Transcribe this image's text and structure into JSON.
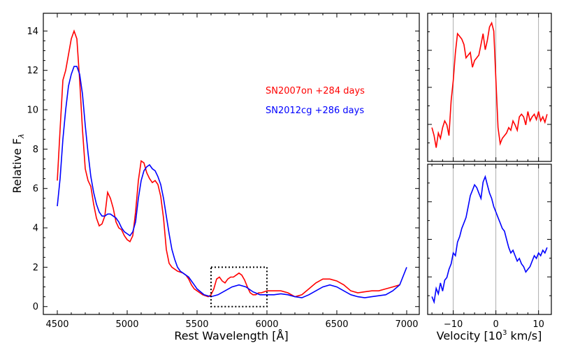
{
  "chart_data": [
    {
      "type": "line",
      "panel": "main",
      "xlabel": "Rest Wavelength [Å]",
      "ylabel": "Relative F",
      "ylabel_subscript": "λ",
      "xlim": [
        4400,
        7090
      ],
      "ylim": [
        -0.4,
        14.9
      ],
      "xticks": [
        4500,
        5000,
        5500,
        6000,
        6500,
        7000
      ],
      "yticks": [
        0,
        2,
        4,
        6,
        8,
        10,
        12,
        14
      ],
      "legend_position": "upper-middle-right",
      "annotation_box": {
        "x": [
          5600,
          6000
        ],
        "y": [
          0,
          2.0
        ],
        "style": "dotted"
      },
      "series": [
        {
          "name": "SN2007on +284 days",
          "color": "#ff0000",
          "x": [
            4500,
            4520,
            4540,
            4560,
            4580,
            4600,
            4620,
            4640,
            4660,
            4680,
            4700,
            4720,
            4740,
            4760,
            4780,
            4800,
            4820,
            4840,
            4860,
            4880,
            4900,
            4920,
            4940,
            4960,
            4980,
            5000,
            5020,
            5040,
            5060,
            5080,
            5100,
            5120,
            5140,
            5160,
            5180,
            5200,
            5220,
            5240,
            5260,
            5280,
            5300,
            5320,
            5340,
            5360,
            5380,
            5400,
            5420,
            5440,
            5460,
            5480,
            5500,
            5520,
            5540,
            5560,
            5580,
            5600,
            5620,
            5640,
            5660,
            5680,
            5700,
            5720,
            5740,
            5760,
            5780,
            5800,
            5820,
            5840,
            5860,
            5880,
            5900,
            5920,
            5940,
            5960,
            5980,
            6000,
            6050,
            6100,
            6150,
            6200,
            6250,
            6300,
            6350,
            6400,
            6450,
            6500,
            6550,
            6600,
            6650,
            6700,
            6750,
            6800,
            6850,
            6900,
            6950
          ],
          "values": [
            6.4,
            9.0,
            11.5,
            12.0,
            12.8,
            13.6,
            14.0,
            13.6,
            11.5,
            9.0,
            7.0,
            6.4,
            6.1,
            5.2,
            4.5,
            4.1,
            4.2,
            4.6,
            5.8,
            5.5,
            5.0,
            4.3,
            4.0,
            3.9,
            3.6,
            3.4,
            3.3,
            3.6,
            4.8,
            6.4,
            7.4,
            7.3,
            6.8,
            6.5,
            6.3,
            6.4,
            6.2,
            5.6,
            4.5,
            2.9,
            2.2,
            2.0,
            1.9,
            1.8,
            1.75,
            1.7,
            1.6,
            1.4,
            1.1,
            0.9,
            0.8,
            0.7,
            0.6,
            0.55,
            0.5,
            0.6,
            0.9,
            1.4,
            1.5,
            1.3,
            1.2,
            1.4,
            1.5,
            1.5,
            1.6,
            1.7,
            1.6,
            1.35,
            1.0,
            0.7,
            0.6,
            0.6,
            0.7,
            0.7,
            0.75,
            0.8,
            0.8,
            0.8,
            0.7,
            0.5,
            0.6,
            0.9,
            1.2,
            1.4,
            1.4,
            1.3,
            1.1,
            0.8,
            0.7,
            0.75,
            0.8,
            0.8,
            0.9,
            1.0,
            1.1
          ]
        },
        {
          "name": "SN2012cg +286 days",
          "color": "#0000ff",
          "x": [
            4500,
            4520,
            4540,
            4560,
            4580,
            4600,
            4620,
            4640,
            4660,
            4680,
            4700,
            4720,
            4740,
            4760,
            4780,
            4800,
            4820,
            4840,
            4860,
            4880,
            4900,
            4920,
            4940,
            4960,
            4980,
            5000,
            5020,
            5040,
            5060,
            5080,
            5100,
            5120,
            5140,
            5160,
            5180,
            5200,
            5220,
            5240,
            5260,
            5280,
            5300,
            5320,
            5340,
            5360,
            5380,
            5400,
            5420,
            5440,
            5460,
            5480,
            5500,
            5550,
            5600,
            5650,
            5700,
            5750,
            5800,
            5850,
            5900,
            5950,
            6000,
            6050,
            6100,
            6150,
            6200,
            6250,
            6300,
            6350,
            6400,
            6450,
            6500,
            6550,
            6600,
            6650,
            6700,
            6750,
            6800,
            6850,
            6900,
            6950,
            7000
          ],
          "values": [
            5.1,
            6.5,
            8.5,
            10.0,
            11.2,
            11.8,
            12.2,
            12.2,
            11.8,
            10.8,
            9.2,
            7.8,
            6.6,
            5.8,
            5.2,
            4.8,
            4.6,
            4.6,
            4.7,
            4.7,
            4.6,
            4.5,
            4.3,
            4.0,
            3.8,
            3.7,
            3.6,
            3.8,
            4.3,
            5.5,
            6.4,
            6.9,
            7.1,
            7.2,
            7.0,
            6.9,
            6.6,
            6.2,
            5.5,
            4.6,
            3.7,
            2.9,
            2.4,
            2.0,
            1.8,
            1.7,
            1.6,
            1.5,
            1.3,
            1.1,
            0.9,
            0.6,
            0.5,
            0.6,
            0.8,
            1.0,
            1.1,
            1.0,
            0.75,
            0.6,
            0.6,
            0.6,
            0.65,
            0.6,
            0.5,
            0.45,
            0.6,
            0.8,
            1.0,
            1.1,
            1.0,
            0.8,
            0.6,
            0.5,
            0.45,
            0.5,
            0.55,
            0.6,
            0.8,
            1.1,
            2.0
          ]
        }
      ]
    },
    {
      "type": "line",
      "panel": "inset-top",
      "xlim": [
        -16,
        13
      ],
      "ylim": [
        0,
        1
      ],
      "xticks": [
        -10,
        0,
        10
      ],
      "vlines": [
        -10,
        0,
        10
      ],
      "series": [
        {
          "name": "SN2007on velocity profile",
          "color": "#ff0000",
          "x": [
            -15,
            -14.5,
            -14,
            -13.5,
            -13,
            -12.5,
            -12,
            -11.5,
            -11,
            -10.5,
            -10,
            -9.5,
            -9,
            -8.5,
            -8,
            -7.5,
            -7,
            -6.5,
            -6,
            -5.5,
            -5,
            -4.5,
            -4,
            -3.5,
            -3,
            -2.5,
            -2,
            -1.5,
            -1,
            -0.5,
            0,
            0.5,
            1,
            1.5,
            2,
            2.5,
            3,
            3.5,
            4,
            4.5,
            5,
            5.5,
            6,
            6.5,
            7,
            7.5,
            8,
            8.5,
            9,
            9.5,
            10,
            10.5,
            11,
            11.5,
            12
          ],
          "values": [
            0.2,
            0.14,
            0.05,
            0.16,
            0.12,
            0.2,
            0.25,
            0.22,
            0.14,
            0.4,
            0.55,
            0.76,
            0.9,
            0.88,
            0.86,
            0.82,
            0.72,
            0.74,
            0.76,
            0.65,
            0.7,
            0.72,
            0.74,
            0.82,
            0.9,
            0.78,
            0.85,
            0.95,
            0.98,
            0.92,
            0.55,
            0.2,
            0.08,
            0.12,
            0.14,
            0.16,
            0.2,
            0.18,
            0.25,
            0.22,
            0.18,
            0.28,
            0.3,
            0.28,
            0.22,
            0.32,
            0.25,
            0.28,
            0.3,
            0.26,
            0.32,
            0.25,
            0.28,
            0.24,
            0.3
          ]
        }
      ]
    },
    {
      "type": "line",
      "panel": "inset-bottom",
      "xlabel": "Velocity [10",
      "xlabel_sup": "3",
      "xlabel_tail": " km/s]",
      "xlim": [
        -16,
        13
      ],
      "ylim": [
        0,
        1
      ],
      "xticks": [
        -10,
        0,
        10
      ],
      "xtick_labels": [
        "−10",
        "0",
        "10"
      ],
      "vlines": [
        -10,
        0,
        10
      ],
      "series": [
        {
          "name": "SN2012cg velocity profile",
          "color": "#0000ff",
          "x": [
            -15,
            -14.5,
            -14,
            -13.5,
            -13,
            -12.5,
            -12,
            -11.5,
            -11,
            -10.5,
            -10,
            -9.5,
            -9,
            -8.5,
            -8,
            -7.5,
            -7,
            -6.5,
            -6,
            -5.5,
            -5,
            -4.5,
            -4,
            -3.5,
            -3,
            -2.5,
            -2,
            -1.5,
            -1,
            -0.5,
            0,
            0.5,
            1,
            1.5,
            2,
            2.5,
            3,
            3.5,
            4,
            4.5,
            5,
            5.5,
            6,
            6.5,
            7,
            7.5,
            8,
            8.5,
            9,
            9.5,
            10,
            10.5,
            11,
            11.5,
            12
          ],
          "values": [
            0.08,
            0.04,
            0.14,
            0.1,
            0.18,
            0.12,
            0.2,
            0.22,
            0.28,
            0.32,
            0.4,
            0.38,
            0.48,
            0.52,
            0.58,
            0.62,
            0.66,
            0.74,
            0.82,
            0.86,
            0.9,
            0.88,
            0.84,
            0.8,
            0.92,
            0.96,
            0.9,
            0.84,
            0.8,
            0.74,
            0.7,
            0.66,
            0.62,
            0.58,
            0.56,
            0.5,
            0.44,
            0.4,
            0.42,
            0.38,
            0.34,
            0.36,
            0.32,
            0.3,
            0.26,
            0.28,
            0.3,
            0.34,
            0.38,
            0.36,
            0.4,
            0.38,
            0.42,
            0.4,
            0.44
          ]
        }
      ]
    }
  ]
}
